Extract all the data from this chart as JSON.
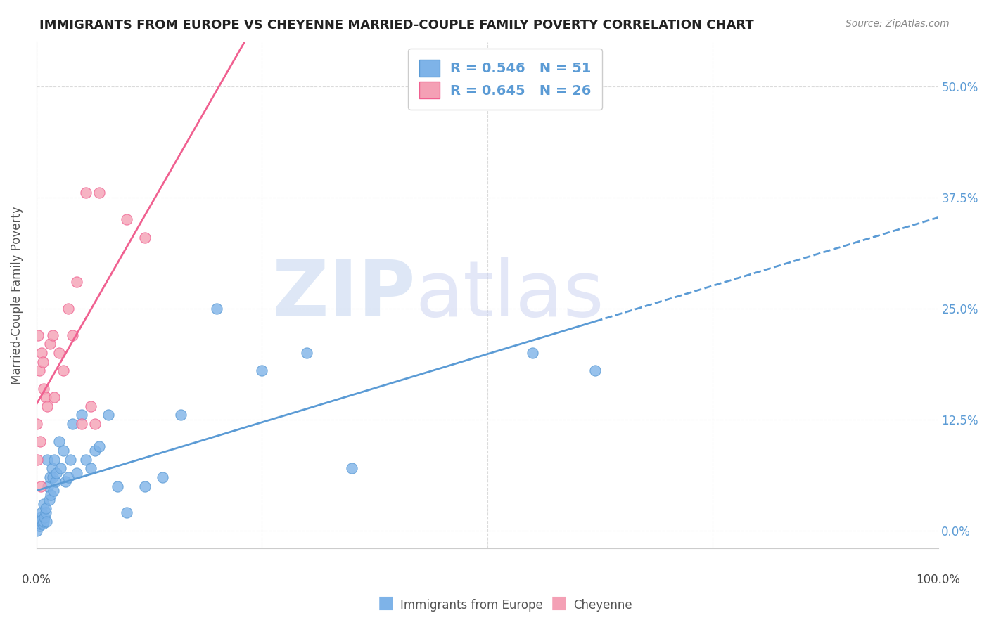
{
  "title": "IMMIGRANTS FROM EUROPE VS CHEYENNE MARRIED-COUPLE FAMILY POVERTY CORRELATION CHART",
  "source": "Source: ZipAtlas.com",
  "ylabel": "Married-Couple Family Poverty",
  "yticks": [
    "0.0%",
    "12.5%",
    "25.0%",
    "37.5%",
    "50.0%"
  ],
  "ytick_vals": [
    0.0,
    0.125,
    0.25,
    0.375,
    0.5
  ],
  "xlim": [
    0.0,
    1.0
  ],
  "ylim": [
    -0.02,
    0.55
  ],
  "legend_blue_label": "R = 0.546   N = 51",
  "legend_pink_label": "R = 0.645   N = 26",
  "legend_bottom_blue": "Immigrants from Europe",
  "legend_bottom_pink": "Cheyenne",
  "blue_color": "#7eb3e8",
  "pink_color": "#f4a0b5",
  "blue_line_color": "#5b9bd5",
  "pink_line_color": "#f06090",
  "blue_scatter_x": [
    0.0,
    0.002,
    0.003,
    0.004,
    0.005,
    0.005,
    0.006,
    0.006,
    0.007,
    0.008,
    0.008,
    0.009,
    0.01,
    0.01,
    0.011,
    0.012,
    0.013,
    0.014,
    0.015,
    0.016,
    0.017,
    0.018,
    0.019,
    0.02,
    0.021,
    0.022,
    0.025,
    0.027,
    0.03,
    0.032,
    0.035,
    0.038,
    0.04,
    0.045,
    0.05,
    0.055,
    0.06,
    0.065,
    0.07,
    0.08,
    0.09,
    0.1,
    0.12,
    0.14,
    0.16,
    0.2,
    0.25,
    0.3,
    0.35,
    0.55,
    0.62
  ],
  "blue_scatter_y": [
    0.0,
    0.01,
    0.005,
    0.008,
    0.015,
    0.01,
    0.02,
    0.012,
    0.008,
    0.01,
    0.03,
    0.015,
    0.02,
    0.025,
    0.01,
    0.08,
    0.05,
    0.035,
    0.06,
    0.04,
    0.07,
    0.06,
    0.045,
    0.08,
    0.055,
    0.065,
    0.1,
    0.07,
    0.09,
    0.055,
    0.06,
    0.08,
    0.12,
    0.065,
    0.13,
    0.08,
    0.07,
    0.09,
    0.095,
    0.13,
    0.05,
    0.02,
    0.05,
    0.06,
    0.13,
    0.25,
    0.18,
    0.2,
    0.07,
    0.2,
    0.18
  ],
  "pink_scatter_x": [
    0.0,
    0.001,
    0.002,
    0.003,
    0.004,
    0.005,
    0.006,
    0.007,
    0.008,
    0.01,
    0.012,
    0.015,
    0.018,
    0.02,
    0.025,
    0.03,
    0.035,
    0.04,
    0.045,
    0.05,
    0.055,
    0.06,
    0.065,
    0.07,
    0.1,
    0.12
  ],
  "pink_scatter_y": [
    0.12,
    0.08,
    0.22,
    0.18,
    0.1,
    0.05,
    0.2,
    0.19,
    0.16,
    0.15,
    0.14,
    0.21,
    0.22,
    0.15,
    0.2,
    0.18,
    0.25,
    0.22,
    0.28,
    0.12,
    0.38,
    0.14,
    0.12,
    0.38,
    0.35,
    0.33
  ],
  "blue_R": 0.546,
  "blue_N": 51,
  "pink_R": 0.645,
  "pink_N": 26
}
